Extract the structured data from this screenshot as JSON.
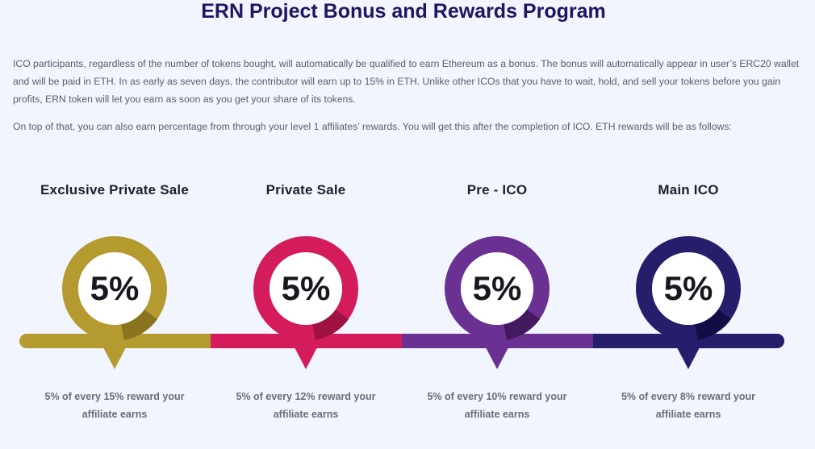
{
  "heading": "ERN Project Bonus and Rewards Program",
  "paragraphs": [
    "ICO participants, regardless of the number of tokens bought, will automatically be qualified to earn Ethereum as a bonus. The bonus will automatically appear in user’s ERC20 wallet and will be paid in ETH. In as early as seven days, the contributor will earn up to 15% in ETH. Unlike other ICOs that you have to wait, hold, and sell your tokens before you gain profits, ERN token will let you earn as soon as you get your share of its tokens.",
    "On top of that, you can also earn percentage from through your level 1 affiliates’ rewards. You will get this after the completion of ICO. ETH rewards will be as follows:"
  ],
  "stages": [
    {
      "title": "Exclusive Private Sale",
      "percent": "5%",
      "caption_line1": "5% of every 15% reward your",
      "caption_line2": "affiliate earns",
      "color": "#b59a30",
      "shade": "#8a741f"
    },
    {
      "title": "Private Sale",
      "percent": "5%",
      "caption_line1": "5% of every 12% reward your",
      "caption_line2": "affiliate earns",
      "color": "#d41c5c",
      "shade": "#9e1243"
    },
    {
      "title": "Pre - ICO",
      "percent": "5%",
      "caption_line1": "5% of every 10% reward your",
      "caption_line2": "affiliate earns",
      "color": "#6a3193",
      "shade": "#43195f"
    },
    {
      "title": "Main ICO",
      "percent": "5%",
      "caption_line1": "5% of every 8% reward your",
      "caption_line2": "affiliate earns",
      "color": "#241e6b",
      "shade": "#120d44"
    }
  ]
}
